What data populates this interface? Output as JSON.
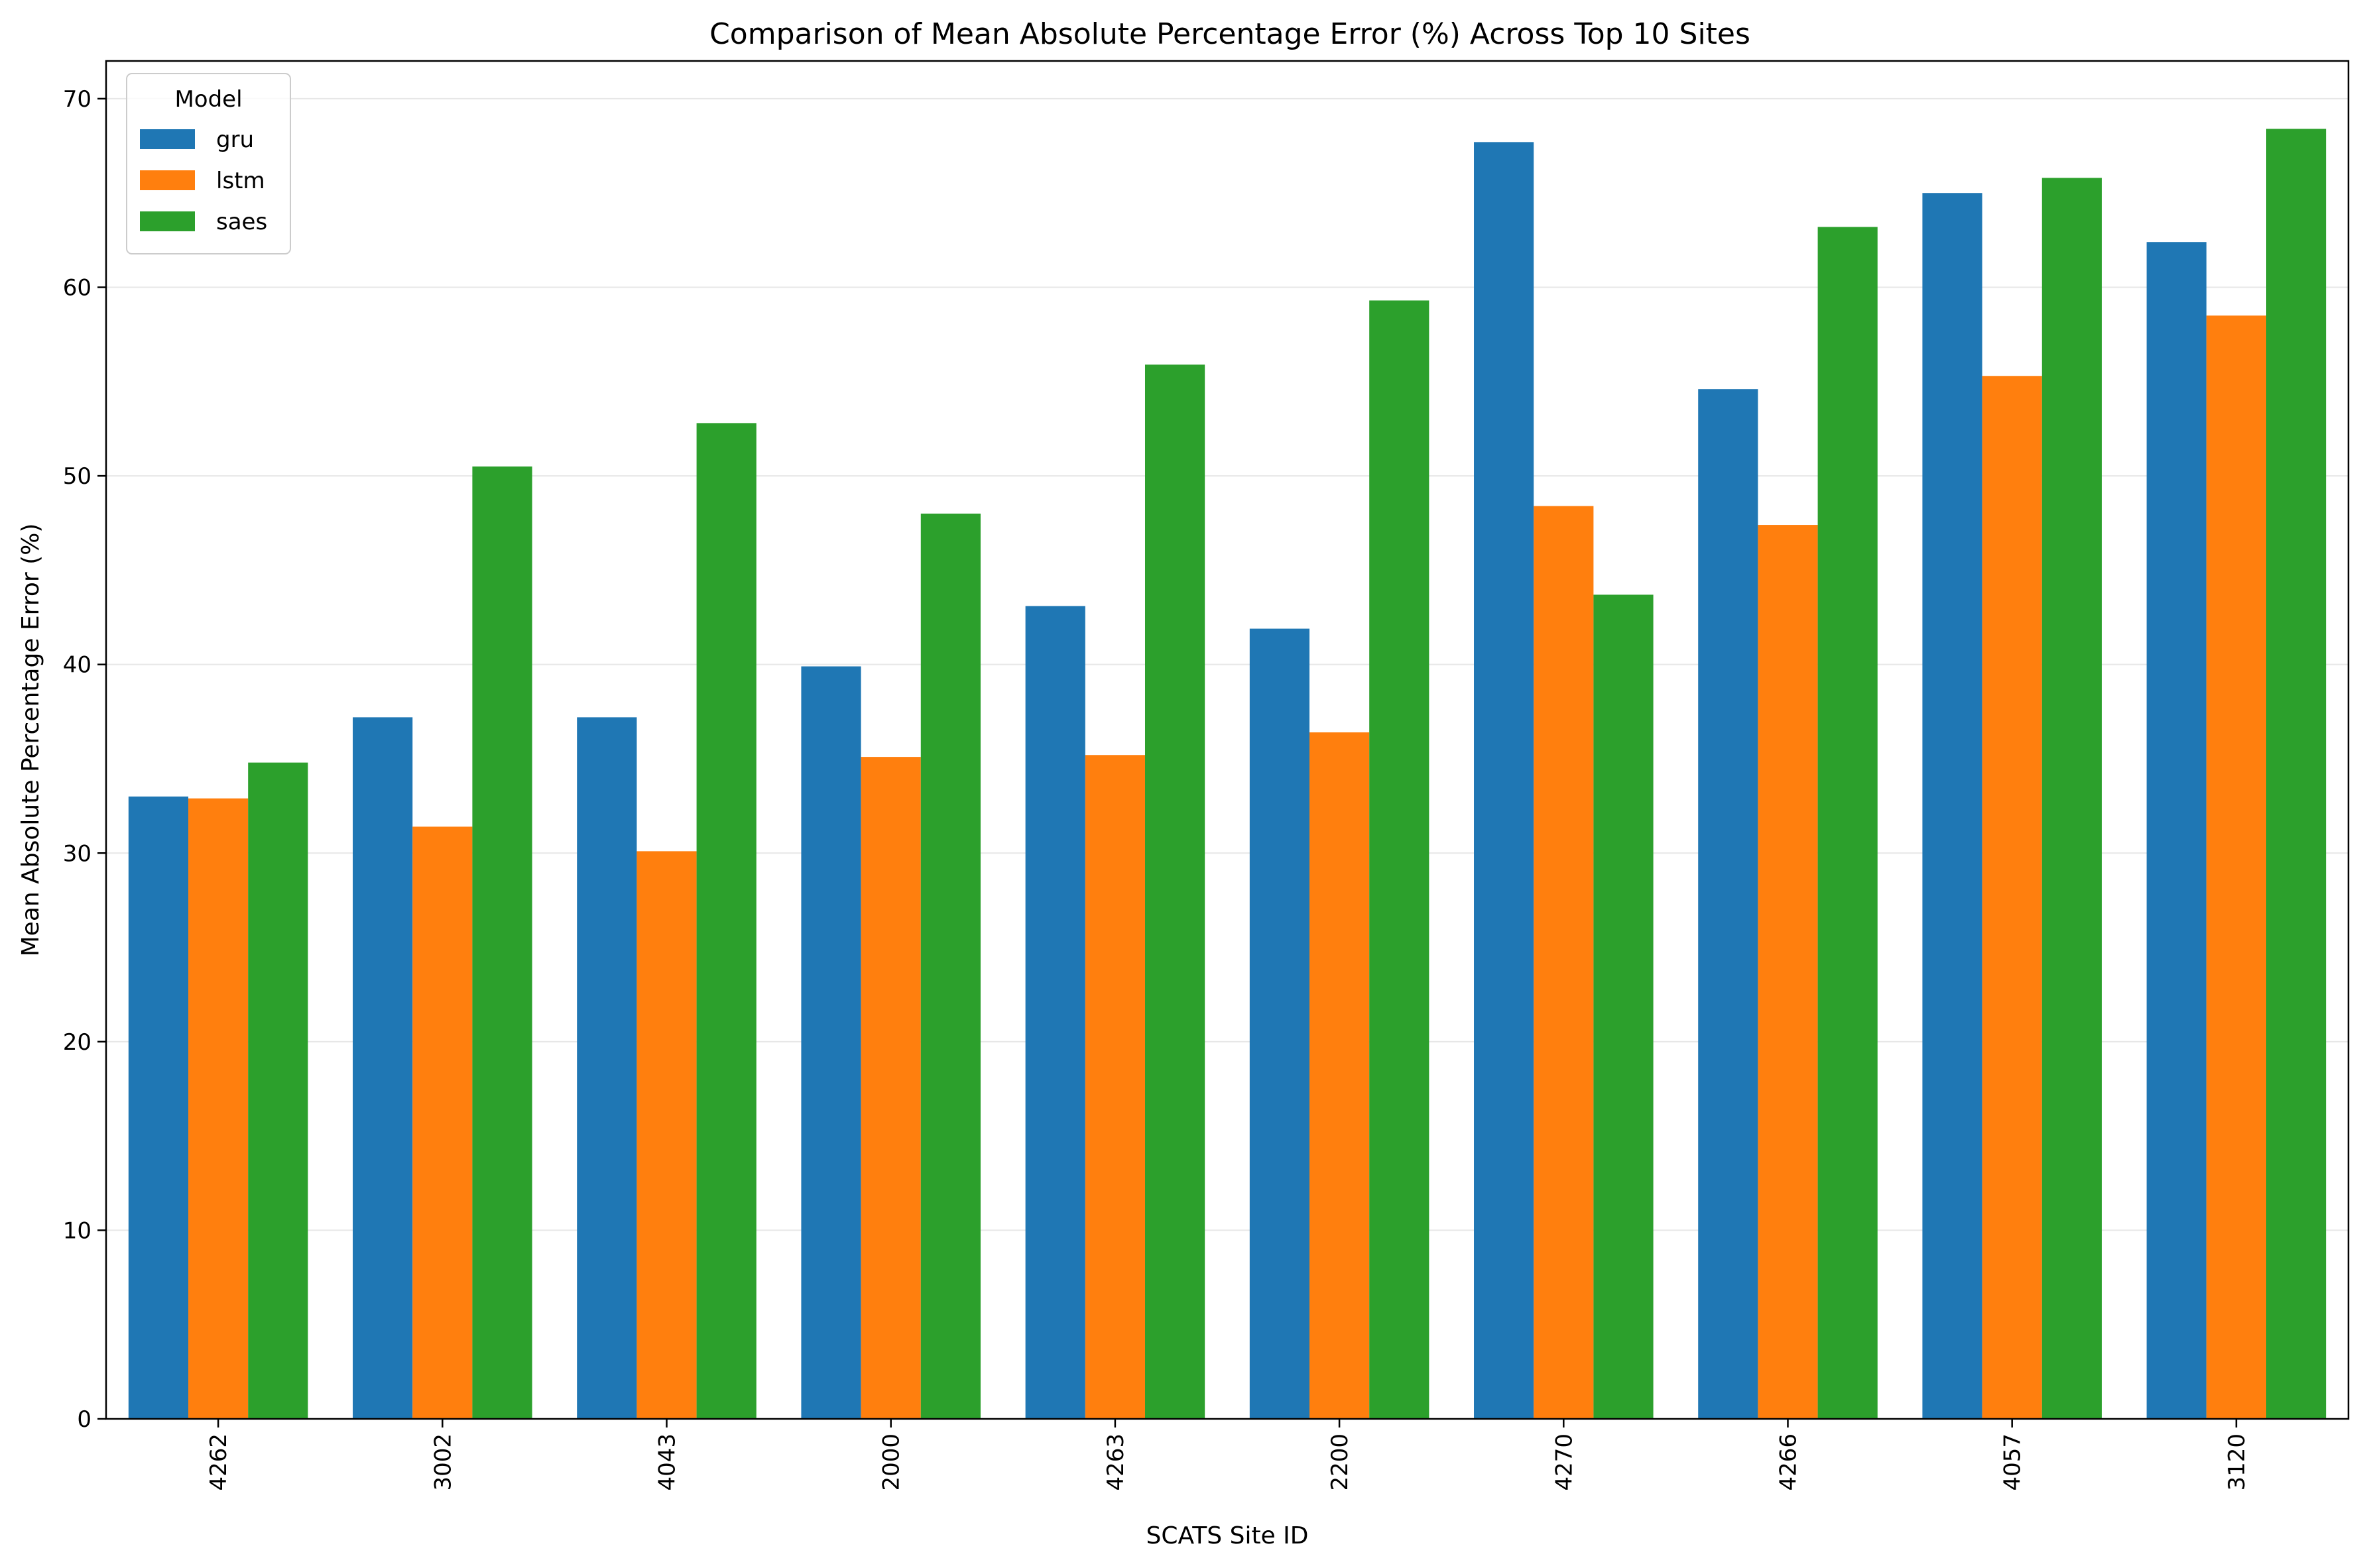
{
  "chart_data": {
    "type": "bar",
    "title": "Comparison of Mean Absolute Percentage Error (%) Across Top 10 Sites",
    "xlabel": "SCATS Site ID",
    "ylabel": "Mean Absolute Percentage Error (%)",
    "ylim": [
      0,
      72
    ],
    "yticks": [
      0,
      10,
      20,
      30,
      40,
      50,
      60,
      70
    ],
    "grid": "y",
    "legend": {
      "title": "Model",
      "placement": "top-left"
    },
    "categories": [
      "4262",
      "3002",
      "4043",
      "2000",
      "4263",
      "2200",
      "4270",
      "4266",
      "4057",
      "3120"
    ],
    "series": [
      {
        "name": "gru",
        "color": "#1f77b4",
        "values": [
          33.0,
          37.2,
          37.2,
          39.9,
          43.1,
          41.9,
          67.7,
          54.6,
          65.0,
          62.4
        ]
      },
      {
        "name": "lstm",
        "color": "#ff7f0e",
        "values": [
          32.9,
          31.4,
          30.1,
          35.1,
          35.2,
          36.4,
          48.4,
          47.4,
          55.3,
          58.5
        ]
      },
      {
        "name": "saes",
        "color": "#2ca02c",
        "values": [
          34.8,
          50.5,
          52.8,
          48.0,
          55.9,
          59.3,
          43.7,
          63.2,
          65.8,
          68.4
        ]
      }
    ]
  }
}
